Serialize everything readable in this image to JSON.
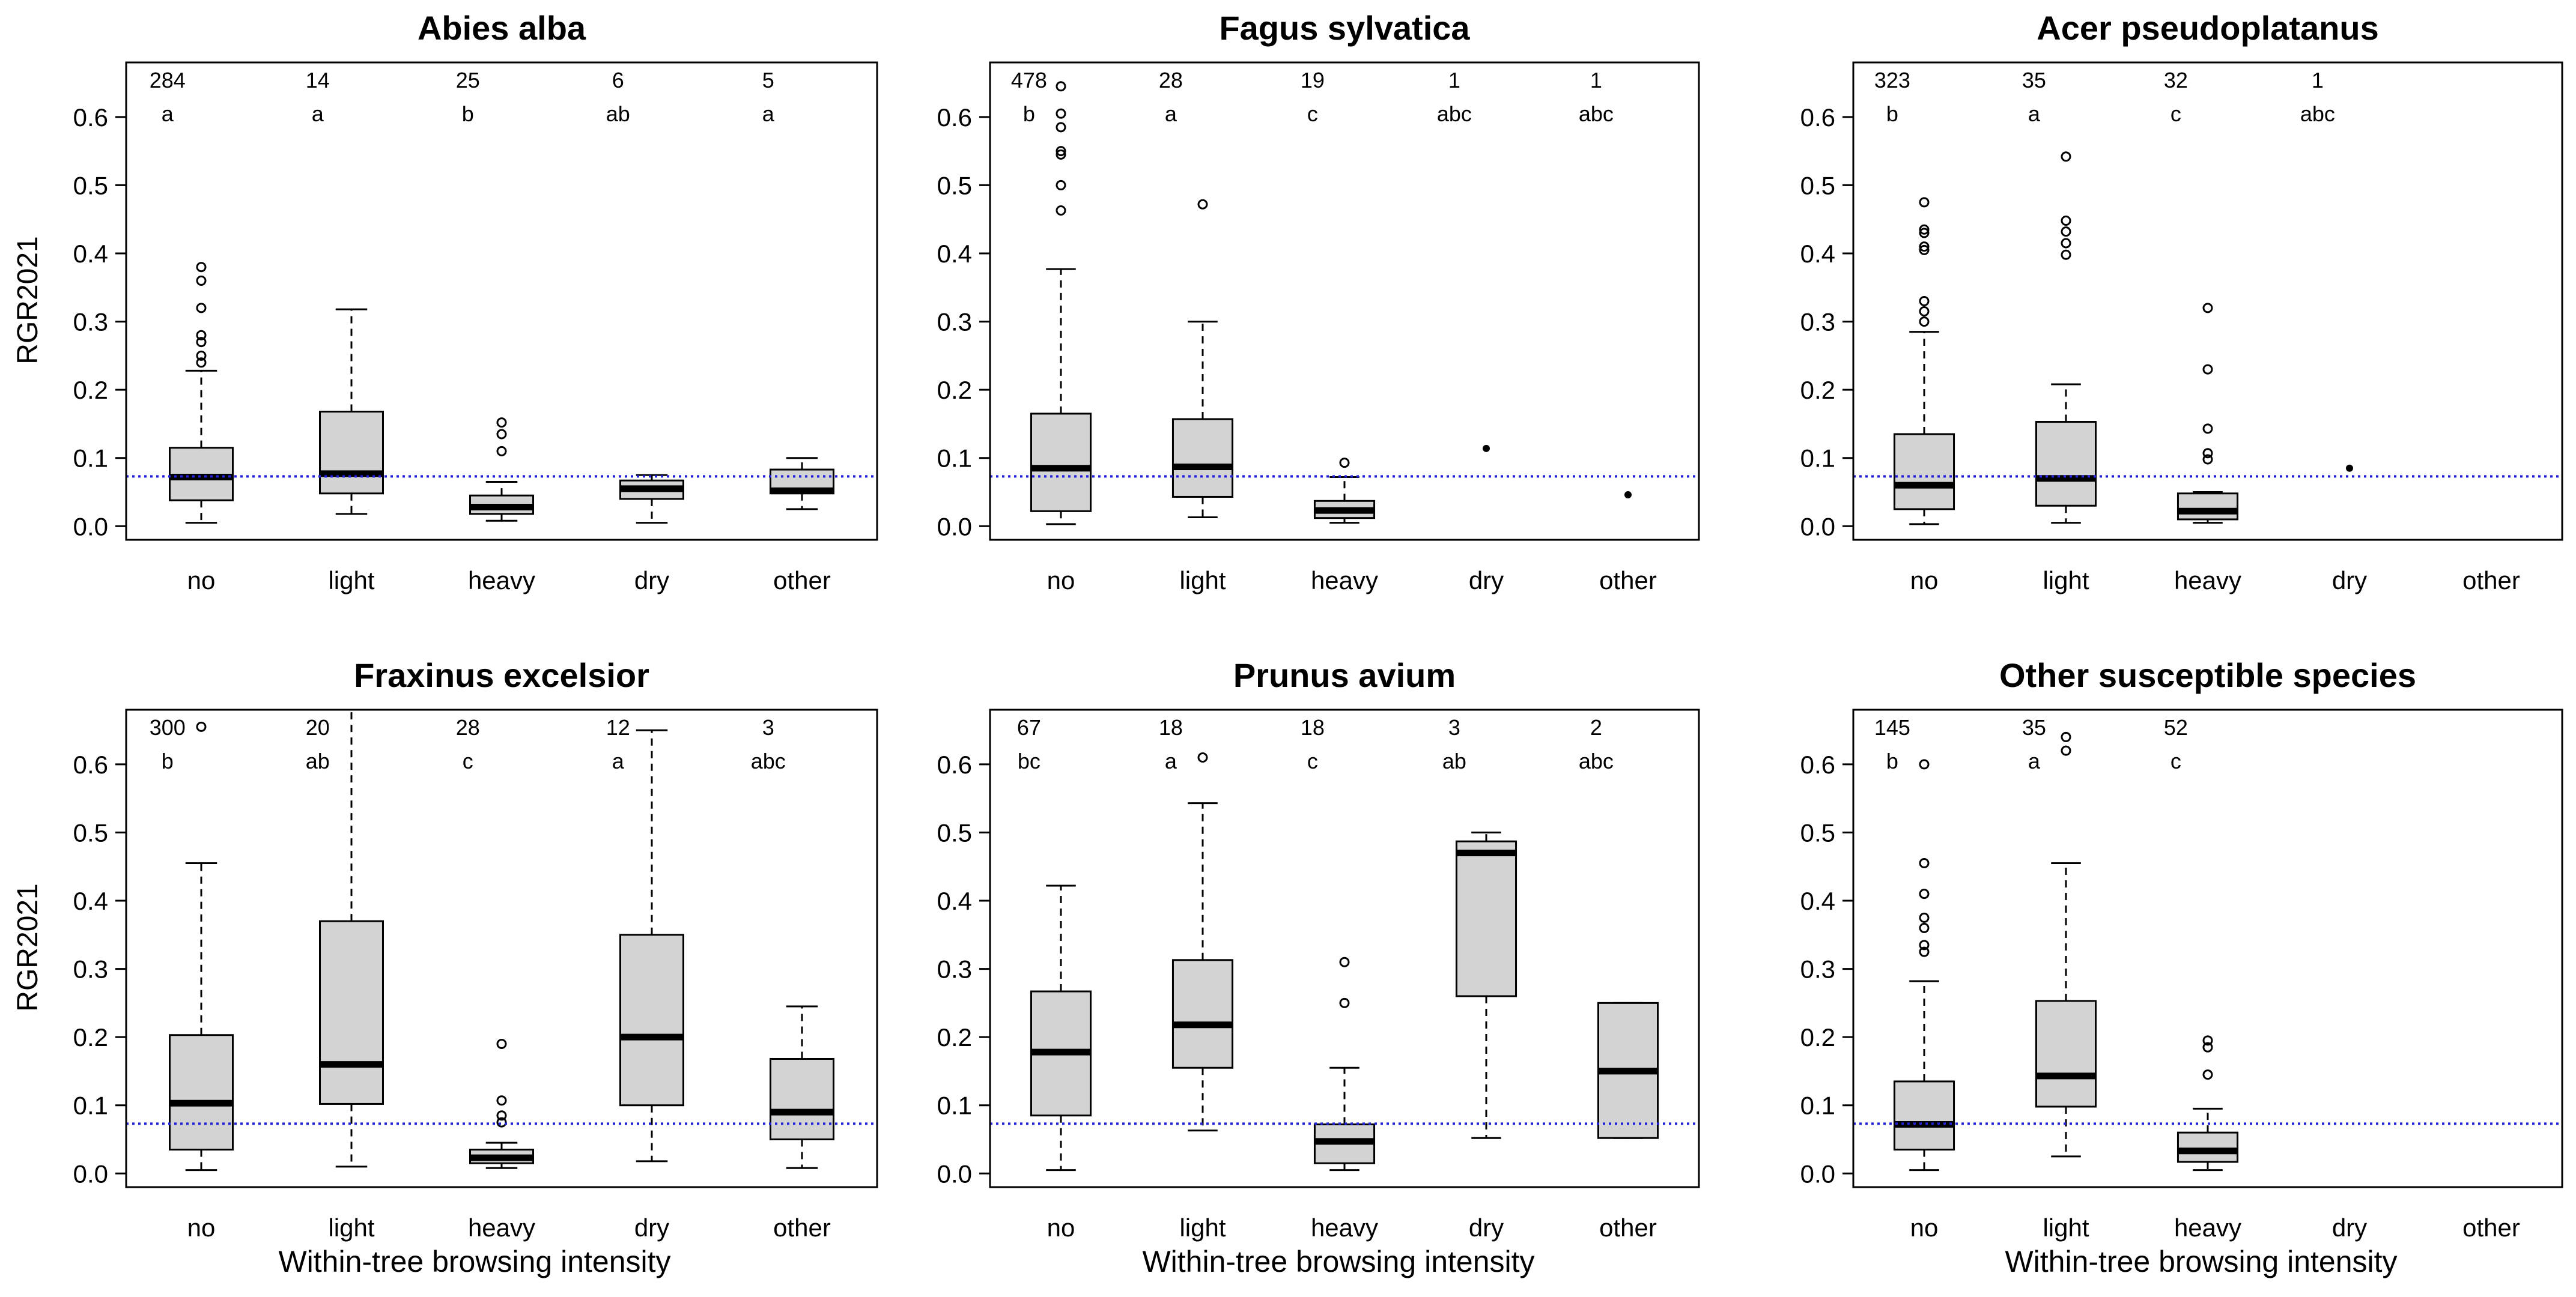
{
  "figure": {
    "ylabel": "RGR2021",
    "xlabel": "Within-tree browsing intensity",
    "reference_line": {
      "y": 0.073,
      "color": "#2222dd"
    },
    "box_fill": "#d3d3d3"
  },
  "chart_data": [
    {
      "type": "box",
      "title": "Abies alba",
      "categories": [
        "no",
        "light",
        "heavy",
        "dry",
        "other"
      ],
      "ylim": [
        -0.02,
        0.68
      ],
      "yticks": [
        0.0,
        0.1,
        0.2,
        0.3,
        0.4,
        0.5,
        0.6
      ],
      "ytick_labels": [
        "0.0",
        "0.1",
        "0.2",
        "0.3",
        "0.4",
        "0.5",
        "0.6"
      ],
      "counts": [
        "284",
        "14",
        "25",
        "6",
        "5"
      ],
      "letters": [
        "a",
        "a",
        "b",
        "ab",
        "a"
      ],
      "boxes": [
        {
          "min": 0.005,
          "q1": 0.038,
          "median": 0.072,
          "q3": 0.115,
          "max": 0.228,
          "outliers": [
            0.24,
            0.25,
            0.27,
            0.28,
            0.32,
            0.36,
            0.38
          ]
        },
        {
          "min": 0.018,
          "q1": 0.048,
          "median": 0.077,
          "q3": 0.168,
          "max": 0.318,
          "outliers": []
        },
        {
          "min": 0.008,
          "q1": 0.018,
          "median": 0.028,
          "q3": 0.045,
          "max": 0.065,
          "outliers": [
            0.11,
            0.135,
            0.152
          ]
        },
        {
          "min": 0.005,
          "q1": 0.04,
          "median": 0.055,
          "q3": 0.067,
          "max": 0.075,
          "outliers": []
        },
        {
          "min": 0.025,
          "q1": 0.048,
          "median": 0.052,
          "q3": 0.083,
          "max": 0.1,
          "outliers": []
        }
      ]
    },
    {
      "type": "box",
      "title": "Fagus sylvatica",
      "categories": [
        "no",
        "light",
        "heavy",
        "dry",
        "other"
      ],
      "ylim": [
        -0.02,
        0.68
      ],
      "yticks": [
        0.0,
        0.1,
        0.2,
        0.3,
        0.4,
        0.5,
        0.6
      ],
      "ytick_labels": [
        "0.0",
        "0.1",
        "0.2",
        "0.3",
        "0.4",
        "0.5",
        "0.6"
      ],
      "counts": [
        "478",
        "28",
        "19",
        "1",
        "1"
      ],
      "letters": [
        "b",
        "a",
        "c",
        "abc",
        "abc"
      ],
      "boxes": [
        {
          "min": 0.003,
          "q1": 0.022,
          "median": 0.085,
          "q3": 0.165,
          "max": 0.377,
          "outliers": [
            0.463,
            0.5,
            0.545,
            0.55,
            0.585,
            0.605,
            0.645
          ]
        },
        {
          "min": 0.013,
          "q1": 0.043,
          "median": 0.087,
          "q3": 0.157,
          "max": 0.3,
          "outliers": [
            0.472
          ]
        },
        {
          "min": 0.005,
          "q1": 0.012,
          "median": 0.023,
          "q3": 0.037,
          "max": 0.072,
          "outliers": [
            0.093
          ]
        },
        {
          "point": 0.114
        },
        {
          "point": 0.046
        }
      ]
    },
    {
      "type": "box",
      "title": "Acer pseudoplatanus",
      "categories": [
        "no",
        "light",
        "heavy",
        "dry",
        "other"
      ],
      "ylim": [
        -0.02,
        0.68
      ],
      "yticks": [
        0.0,
        0.1,
        0.2,
        0.3,
        0.4,
        0.5,
        0.6
      ],
      "ytick_labels": [
        "0.0",
        "0.1",
        "0.2",
        "0.3",
        "0.4",
        "0.5",
        "0.6"
      ],
      "counts": [
        "323",
        "35",
        "32",
        "1",
        ""
      ],
      "letters": [
        "b",
        "a",
        "c",
        "abc",
        ""
      ],
      "boxes": [
        {
          "min": 0.003,
          "q1": 0.025,
          "median": 0.06,
          "q3": 0.135,
          "max": 0.285,
          "outliers": [
            0.3,
            0.315,
            0.33,
            0.405,
            0.41,
            0.43,
            0.435,
            0.475
          ]
        },
        {
          "min": 0.005,
          "q1": 0.03,
          "median": 0.07,
          "q3": 0.153,
          "max": 0.208,
          "outliers": [
            0.398,
            0.415,
            0.432,
            0.448,
            0.542
          ]
        },
        {
          "min": 0.005,
          "q1": 0.01,
          "median": 0.022,
          "q3": 0.048,
          "max": 0.05,
          "outliers": [
            0.098,
            0.107,
            0.143,
            0.23,
            0.32
          ]
        },
        {
          "point": 0.085
        },
        null
      ]
    },
    {
      "type": "box",
      "title": "Fraxinus excelsior",
      "categories": [
        "no",
        "light",
        "heavy",
        "dry",
        "other"
      ],
      "ylim": [
        -0.02,
        0.68
      ],
      "yticks": [
        0.0,
        0.1,
        0.2,
        0.3,
        0.4,
        0.5,
        0.6
      ],
      "ytick_labels": [
        "0.0",
        "0.1",
        "0.2",
        "0.3",
        "0.4",
        "0.5",
        "0.6"
      ],
      "counts": [
        "300",
        "20",
        "28",
        "12",
        "3"
      ],
      "letters": [
        "b",
        "ab",
        "c",
        "a",
        "abc"
      ],
      "boxes": [
        {
          "min": 0.005,
          "q1": 0.035,
          "median": 0.103,
          "q3": 0.203,
          "max": 0.455,
          "outliers": [
            0.655
          ]
        },
        {
          "min": 0.01,
          "q1": 0.102,
          "median": 0.16,
          "q3": 0.37,
          "max": 0.7,
          "outliers": []
        },
        {
          "min": 0.008,
          "q1": 0.015,
          "median": 0.023,
          "q3": 0.035,
          "max": 0.045,
          "outliers": [
            0.075,
            0.085,
            0.107,
            0.19
          ]
        },
        {
          "min": 0.018,
          "q1": 0.1,
          "median": 0.2,
          "q3": 0.35,
          "max": 0.65,
          "outliers": []
        },
        {
          "min": 0.008,
          "q1": 0.05,
          "median": 0.09,
          "q3": 0.168,
          "max": 0.245,
          "outliers": []
        }
      ]
    },
    {
      "type": "box",
      "title": "Prunus avium",
      "categories": [
        "no",
        "light",
        "heavy",
        "dry",
        "other"
      ],
      "ylim": [
        -0.02,
        0.68
      ],
      "yticks": [
        0.0,
        0.1,
        0.2,
        0.3,
        0.4,
        0.5,
        0.6
      ],
      "ytick_labels": [
        "0.0",
        "0.1",
        "0.2",
        "0.3",
        "0.4",
        "0.5",
        "0.6"
      ],
      "counts": [
        "67",
        "18",
        "18",
        "3",
        "2"
      ],
      "letters": [
        "bc",
        "a",
        "c",
        "ab",
        "abc"
      ],
      "boxes": [
        {
          "min": 0.005,
          "q1": 0.085,
          "median": 0.178,
          "q3": 0.267,
          "max": 0.422,
          "outliers": []
        },
        {
          "min": 0.063,
          "q1": 0.155,
          "median": 0.218,
          "q3": 0.313,
          "max": 0.543,
          "outliers": [
            0.61
          ]
        },
        {
          "min": 0.005,
          "q1": 0.015,
          "median": 0.047,
          "q3": 0.072,
          "max": 0.155,
          "outliers": [
            0.25,
            0.31
          ]
        },
        {
          "min": 0.052,
          "q1": 0.26,
          "median": 0.47,
          "q3": 0.487,
          "max": 0.5,
          "outliers": []
        },
        {
          "min": 0.052,
          "q1": 0.052,
          "median": 0.15,
          "q3": 0.25,
          "max": 0.25,
          "outliers": []
        }
      ]
    },
    {
      "type": "box",
      "title": "Other susceptible species",
      "categories": [
        "no",
        "light",
        "heavy",
        "dry",
        "other"
      ],
      "ylim": [
        -0.02,
        0.68
      ],
      "yticks": [
        0.0,
        0.1,
        0.2,
        0.3,
        0.4,
        0.5,
        0.6
      ],
      "ytick_labels": [
        "0.0",
        "0.1",
        "0.2",
        "0.3",
        "0.4",
        "0.5",
        "0.6"
      ],
      "counts": [
        "145",
        "35",
        "52",
        "",
        ""
      ],
      "letters": [
        "b",
        "a",
        "c",
        "",
        ""
      ],
      "boxes": [
        {
          "min": 0.005,
          "q1": 0.035,
          "median": 0.072,
          "q3": 0.135,
          "max": 0.282,
          "outliers": [
            0.325,
            0.335,
            0.36,
            0.375,
            0.41,
            0.455,
            0.6
          ]
        },
        {
          "min": 0.025,
          "q1": 0.098,
          "median": 0.143,
          "q3": 0.253,
          "max": 0.455,
          "outliers": [
            0.62,
            0.64
          ]
        },
        {
          "min": 0.005,
          "q1": 0.017,
          "median": 0.033,
          "q3": 0.06,
          "max": 0.095,
          "outliers": [
            0.145,
            0.185,
            0.195
          ]
        },
        null,
        null
      ]
    }
  ]
}
